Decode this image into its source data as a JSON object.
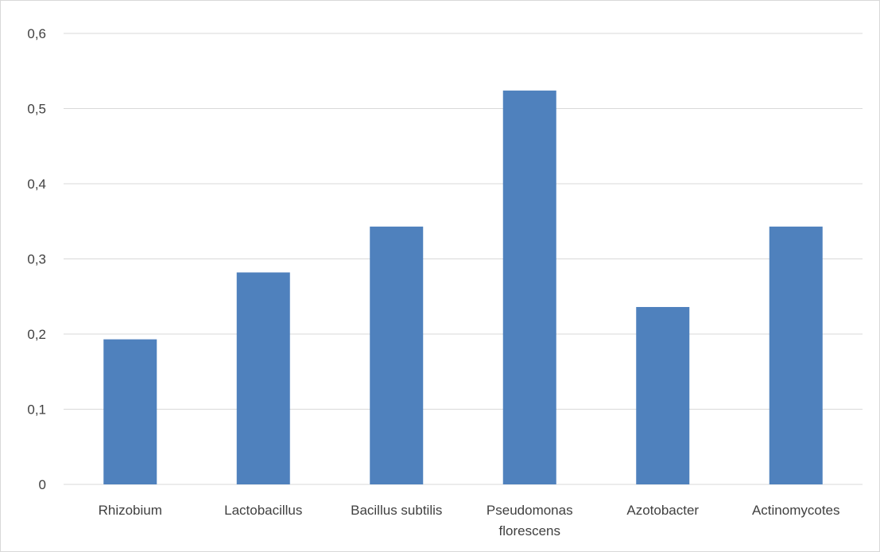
{
  "chart_data": {
    "type": "bar",
    "categories": [
      [
        "Rhizobium"
      ],
      [
        "Lactobacillus"
      ],
      [
        "Bacillus subtilis"
      ],
      [
        "Pseudomonas",
        "florescens"
      ],
      [
        "Azotobacter"
      ],
      [
        "Actinomycotes"
      ]
    ],
    "series": [
      {
        "values": [
          0.193,
          0.282,
          0.343,
          0.524,
          0.236,
          0.343
        ]
      }
    ],
    "yticks": [
      "0",
      "0,1",
      "0,2",
      "0,3",
      "0,4",
      "0,5",
      "0,6"
    ],
    "ylim": [
      0,
      0.6
    ],
    "grid": true,
    "legend": "none",
    "title": "",
    "xlabel": "",
    "ylabel": "",
    "colors": {
      "bar": "#4f81bd",
      "grid": "#d9d9d9",
      "text": "#404040"
    }
  }
}
